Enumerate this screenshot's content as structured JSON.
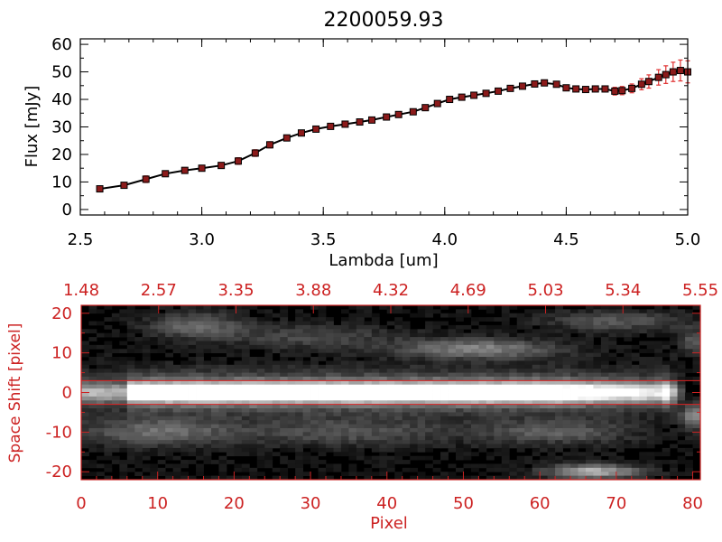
{
  "chart_data": [
    {
      "type": "line",
      "title": "2200059.93",
      "xlabel": "Lambda [um]",
      "ylabel": "Flux [mJy]",
      "xlim": [
        2.5,
        5.0
      ],
      "ylim": [
        -2,
        62
      ],
      "xticks": [
        {
          "v": 2.5,
          "label": "2.5"
        },
        {
          "v": 3.0,
          "label": "3.0"
        },
        {
          "v": 3.5,
          "label": "3.5"
        },
        {
          "v": 4.0,
          "label": "4.0"
        },
        {
          "v": 4.5,
          "label": "4.5"
        },
        {
          "v": 5.0,
          "label": "5.0"
        }
      ],
      "yticks": [
        {
          "v": 0,
          "label": "0"
        },
        {
          "v": 10,
          "label": "10"
        },
        {
          "v": 20,
          "label": "20"
        },
        {
          "v": 30,
          "label": "30"
        },
        {
          "v": 40,
          "label": "40"
        },
        {
          "v": 50,
          "label": "50"
        },
        {
          "v": 60,
          "label": "60"
        }
      ],
      "line_color": "#000000",
      "marker_color": "#8b1a1a",
      "errorbar_color": "#e03030",
      "x": [
        2.58,
        2.68,
        2.77,
        2.85,
        2.93,
        3.0,
        3.08,
        3.15,
        3.22,
        3.28,
        3.35,
        3.41,
        3.47,
        3.53,
        3.59,
        3.65,
        3.7,
        3.76,
        3.81,
        3.87,
        3.92,
        3.97,
        4.02,
        4.07,
        4.12,
        4.17,
        4.22,
        4.27,
        4.32,
        4.37,
        4.41,
        4.46,
        4.5,
        4.54,
        4.58,
        4.62,
        4.66,
        4.7,
        4.73,
        4.77,
        4.81,
        4.84,
        4.88,
        4.91,
        4.94,
        4.97,
        5.0
      ],
      "y": [
        7.5,
        8.8,
        11.0,
        13.0,
        14.2,
        15.0,
        16.0,
        17.6,
        20.5,
        23.5,
        26.0,
        27.8,
        29.2,
        30.2,
        31.0,
        31.8,
        32.5,
        33.6,
        34.5,
        35.5,
        37.0,
        38.5,
        40.0,
        40.8,
        41.5,
        42.2,
        43.0,
        44.0,
        44.8,
        45.6,
        46.0,
        45.5,
        44.2,
        43.8,
        43.6,
        43.8,
        43.8,
        43.0,
        43.2,
        44.0,
        45.5,
        46.5,
        48.0,
        49.0,
        50.0,
        50.5,
        50.0
      ],
      "yerr": [
        0.8,
        0.9,
        1.2,
        1.0,
        0.9,
        0.9,
        1.0,
        1.2,
        1.2,
        1.1,
        1.0,
        0.9,
        0.8,
        0.8,
        0.8,
        0.8,
        0.8,
        0.8,
        0.8,
        0.8,
        0.8,
        0.8,
        0.8,
        0.8,
        0.8,
        0.8,
        0.8,
        0.8,
        0.8,
        0.8,
        0.8,
        0.9,
        0.9,
        0.9,
        1.0,
        1.0,
        1.1,
        1.4,
        1.5,
        1.6,
        2.0,
        2.4,
        2.8,
        3.2,
        3.5,
        3.8,
        4.0
      ]
    },
    {
      "type": "heatmap",
      "xlabel": "Pixel",
      "ylabel": "Space Shift [pixel]",
      "xlim": [
        0,
        81
      ],
      "ylim": [
        -22,
        22
      ],
      "xticks": [
        {
          "v": 0,
          "label": "0"
        },
        {
          "v": 10,
          "label": "10"
        },
        {
          "v": 20,
          "label": "20"
        },
        {
          "v": 30,
          "label": "30"
        },
        {
          "v": 40,
          "label": "40"
        },
        {
          "v": 50,
          "label": "50"
        },
        {
          "v": 60,
          "label": "60"
        },
        {
          "v": 70,
          "label": "70"
        },
        {
          "v": 80,
          "label": "80"
        }
      ],
      "yticks": [
        {
          "v": 20,
          "label": "20"
        },
        {
          "v": 10,
          "label": "10"
        },
        {
          "v": 0,
          "label": "0"
        },
        {
          "v": -10,
          "label": "-10"
        },
        {
          "v": -20,
          "label": "-20"
        }
      ],
      "top_axis_labels": [
        "1.48",
        "2.57",
        "3.35",
        "3.88",
        "4.32",
        "4.69",
        "5.03",
        "5.34",
        "5.55"
      ],
      "extraction_window": [
        -3,
        3
      ],
      "axis_color": "#cc2222",
      "colormap": "grayscale"
    }
  ]
}
